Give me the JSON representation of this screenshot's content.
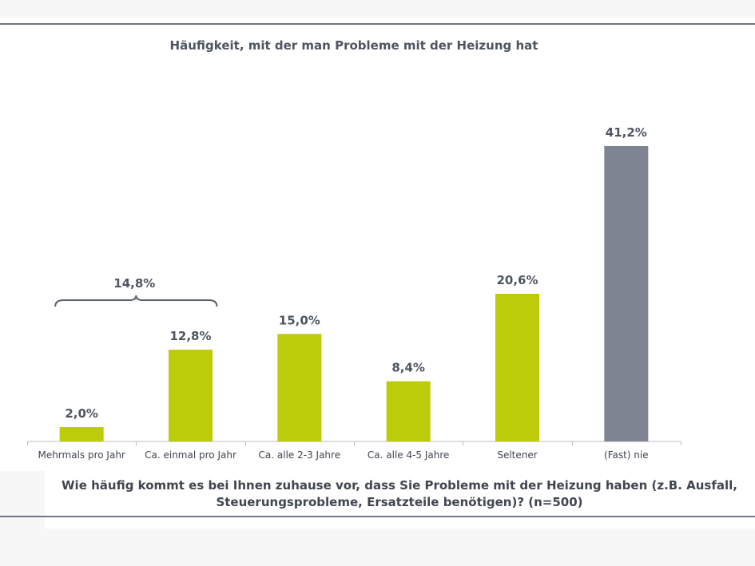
{
  "chart_data": {
    "type": "bar",
    "title": "Häufigkeit, mit der man Probleme mit der Heizung hat",
    "categories": [
      "Mehrmals pro Jahr",
      "Ca. einmal pro Jahr",
      "Ca. alle 2-3 Jahre",
      "Ca. alle 4-5 Jahre",
      "Seltener",
      "(Fast) nie"
    ],
    "values": [
      2.0,
      12.8,
      15.0,
      8.4,
      20.6,
      41.2
    ],
    "value_labels": [
      "2,0%",
      "12,8%",
      "15,0%",
      "8,4%",
      "20,6%",
      "41,2%"
    ],
    "unit": "%",
    "ylim": [
      0,
      45
    ],
    "colors": [
      "#bdcc0a",
      "#bdcc0a",
      "#bdcc0a",
      "#bdcc0a",
      "#bdcc0a",
      "#7e8590"
    ],
    "grid": false,
    "bracket": {
      "label": "14,8%",
      "spans": [
        "Mehrmals pro Jahr",
        "Ca. einmal pro Jahr"
      ]
    }
  },
  "question": {
    "line1": "Wie häufig kommt es bei Ihnen zuhause vor, dass Sie Probleme mit der Heizung haben (z.B. Ausfall,",
    "line2": "Steuerungsprobleme, Ersatzteile benötigen)? (n=500)"
  }
}
